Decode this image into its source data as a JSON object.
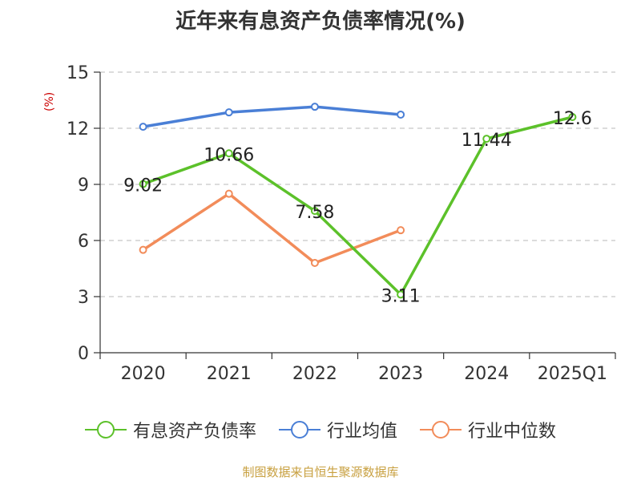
{
  "chart_data": {
    "type": "line",
    "title": "近年来有息资产负债率情况(%)",
    "ylabel": "(%)",
    "categories": [
      "2020",
      "2021",
      "2022",
      "2023",
      "2024",
      "2025Q1"
    ],
    "ylim": [
      0,
      15
    ],
    "yticks": [
      0,
      3,
      6,
      9,
      12,
      15
    ],
    "grid": "horizontal-dashed",
    "legend_position": "bottom",
    "series": [
      {
        "name": "有息资产负债率",
        "color": "#5cc12a",
        "values": [
          9.02,
          10.66,
          7.58,
          3.11,
          11.44,
          12.6
        ],
        "labels": [
          "9.02",
          "10.66",
          "7.58",
          "3.11",
          "11.44",
          "12.6"
        ]
      },
      {
        "name": "行业均值",
        "color": "#4a7fd6",
        "values": [
          12.08,
          12.85,
          13.15,
          12.73,
          null,
          null
        ]
      },
      {
        "name": "行业中位数",
        "color": "#f28c5a",
        "values": [
          5.5,
          8.5,
          4.8,
          6.55,
          null,
          null
        ]
      }
    ]
  },
  "source": "制图数据来自恒生聚源数据库"
}
